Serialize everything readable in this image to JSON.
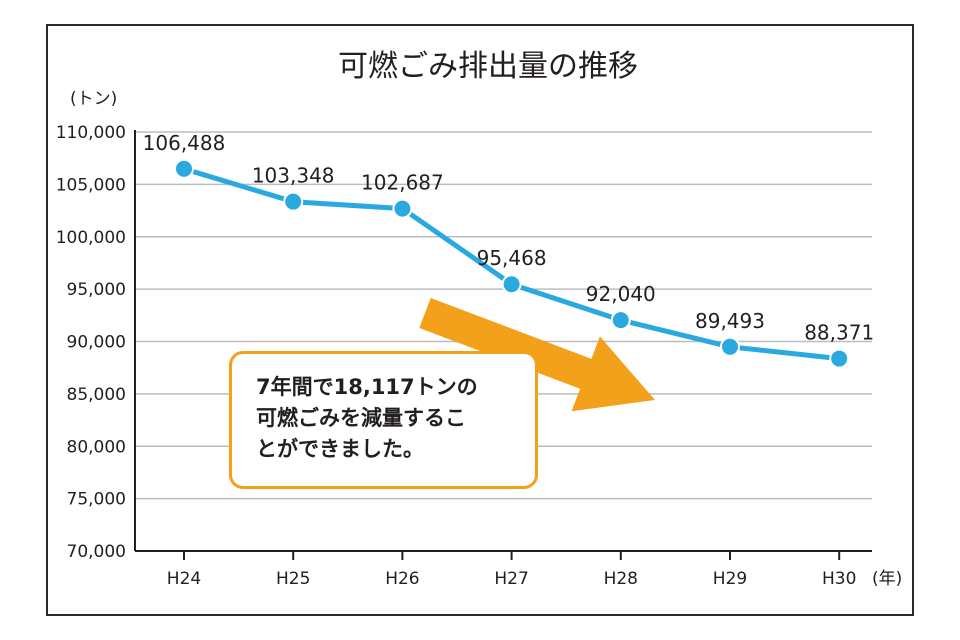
{
  "chart_data": {
    "type": "line",
    "title": "可燃ごみ排出量の推移",
    "ylabel": "(トン)",
    "xlabel": "(年)",
    "categories": [
      "H24",
      "H25",
      "H26",
      "H27",
      "H28",
      "H29",
      "H30"
    ],
    "values": [
      106488,
      103348,
      102687,
      95468,
      92040,
      89493,
      88371
    ],
    "value_labels": [
      "106,488",
      "103,348",
      "102,687",
      "95,468",
      "92,040",
      "89,493",
      "88,371"
    ],
    "ylim": [
      70000,
      110000
    ],
    "yticks": [
      70000,
      75000,
      80000,
      85000,
      90000,
      95000,
      100000,
      105000,
      110000
    ],
    "ytick_labels": [
      "70,000",
      "75,000",
      "80,000",
      "85,000",
      "90,000",
      "95,000",
      "100,000",
      "105,000",
      "110,000"
    ],
    "grid": true,
    "colors": {
      "line": "#29a9e0",
      "arrow": "#f3a01a",
      "note_border": "#f3a01a"
    }
  },
  "annotation": {
    "lines": [
      "7年間で18,117トンの",
      "可燃ごみを減量するこ",
      "とができました。"
    ]
  }
}
